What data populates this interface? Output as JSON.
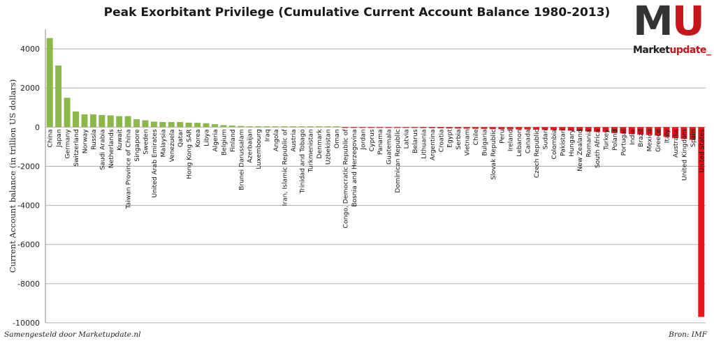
{
  "chart_data": {
    "type": "bar",
    "title": "Peak Exorbitant Privilege (Cumulative Current Account Balance 1980-2013)",
    "ylabel": "Current Account balance (in trillion US dollars)",
    "xlabel": "",
    "ylim": [
      -10000,
      5000
    ],
    "yticks": [
      4000,
      2000,
      0,
      -2000,
      -4000,
      -6000,
      -8000,
      -10000
    ],
    "grid": true,
    "legend": "none",
    "positive_color": "#8cb84a",
    "negative_color": "#e8161c",
    "categories": [
      "China",
      "Japan",
      "Germany",
      "Switzerland",
      "Norway",
      "Russia",
      "Saudi Arabia",
      "Netherlands",
      "Kuwait",
      "Taiwan Province of China",
      "Singapore",
      "Sweden",
      "United Arab Emirates",
      "Malaysia",
      "Venezuela",
      "Qatar",
      "Hong Kong SAR",
      "Korea",
      "Libya",
      "Algeria",
      "Belgium",
      "Finland",
      "Brunei Darussalam",
      "Azerbaijan",
      "Luxembourg",
      "Iraq",
      "Angola",
      "Iran, Islamic Republic of",
      "Austria",
      "Trinidad and Tobago",
      "Turkmenistan",
      "Denmark",
      "Uzbekistan",
      "Oman",
      "Congo, Democratic Republic of",
      "Bosnia and Herzegovina",
      "Jordan",
      "Cyprus",
      "Panama",
      "Guatemala",
      "Dominican Republic",
      "Latvia",
      "Belarus",
      "Lithuania",
      "Argentina",
      "Croatia",
      "Egypt",
      "Serbia",
      "Vietnam",
      "Chile",
      "Bulgaria",
      "Slovak Republic",
      "Peru",
      "Ireland",
      "Lebanon",
      "Canada",
      "Czech Republic",
      "Sudan",
      "Colombia",
      "Pakistan",
      "Hungary",
      "New Zealand",
      "Romania",
      "South Africa",
      "Turkey",
      "Poland",
      "Portugal",
      "India",
      "Brazil",
      "Mexico",
      "Greece",
      "Italy",
      "Australia",
      "United Kingdom",
      "Spain",
      "United States"
    ],
    "values": [
      4550,
      3150,
      1500,
      800,
      650,
      650,
      620,
      600,
      560,
      560,
      400,
      350,
      280,
      260,
      260,
      260,
      230,
      220,
      200,
      150,
      100,
      80,
      60,
      40,
      30,
      30,
      20,
      20,
      20,
      15,
      10,
      10,
      5,
      5,
      -10,
      -20,
      -20,
      -25,
      -30,
      -30,
      -35,
      -40,
      -45,
      -50,
      -55,
      -60,
      -70,
      -75,
      -80,
      -85,
      -90,
      -100,
      -105,
      -110,
      -120,
      -120,
      -130,
      -140,
      -150,
      -160,
      -180,
      -200,
      -220,
      -240,
      -250,
      -300,
      -320,
      -350,
      -380,
      -400,
      -430,
      -500,
      -560,
      -600,
      -650,
      -9700
    ]
  },
  "footer": {
    "left": "Samengesteld door Marketupdate.nl",
    "right": "Bron: IMF"
  },
  "logo": {
    "letters_dark": "M",
    "letters_accent": "U",
    "text_dark": "Market",
    "text_accent": "update_"
  }
}
